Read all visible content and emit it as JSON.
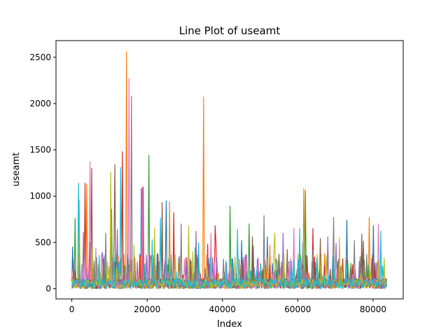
{
  "chart_data": {
    "type": "line",
    "title": "Line Plot of useamt",
    "xlabel": "Index",
    "ylabel": "useamt",
    "xlim": [
      -4200,
      88000
    ],
    "ylim": [
      -110,
      2680
    ],
    "x_ticks": [
      0,
      20000,
      40000,
      60000,
      80000
    ],
    "x_tick_labels": [
      "0",
      "20000",
      "40000",
      "60000",
      "80000"
    ],
    "y_ticks": [
      0,
      500,
      1000,
      1500,
      2000,
      2500
    ],
    "y_tick_labels": [
      "0",
      "500",
      "1000",
      "1500",
      "2000",
      "2500"
    ],
    "grid": false,
    "legend": "none",
    "x_max_index": 83700,
    "series": [
      {
        "color": "#1f77b4",
        "peaks": [
          [
            18500,
            1080
          ],
          [
            25000,
            950
          ],
          [
            45000,
            520
          ],
          [
            52000,
            560
          ],
          [
            73000,
            740
          ],
          [
            80000,
            680
          ]
        ]
      },
      {
        "color": "#ff7f0e",
        "peaks": [
          [
            14500,
            2560
          ],
          [
            35000,
            2070
          ],
          [
            61500,
            1080
          ],
          [
            4000,
            1130
          ],
          [
            26000,
            940
          ],
          [
            79000,
            770
          ]
        ]
      },
      {
        "color": "#2ca02c",
        "peaks": [
          [
            20500,
            1440
          ],
          [
            42000,
            890
          ],
          [
            62000,
            1060
          ],
          [
            800,
            760
          ],
          [
            10500,
            860
          ],
          [
            47000,
            700
          ]
        ]
      },
      {
        "color": "#d62728",
        "peaks": [
          [
            13500,
            1480
          ],
          [
            3500,
            1140
          ],
          [
            19000,
            1100
          ],
          [
            27000,
            820
          ],
          [
            38000,
            680
          ],
          [
            64000,
            650
          ]
        ]
      },
      {
        "color": "#9467bd",
        "peaks": [
          [
            3000,
            610
          ],
          [
            12000,
            640
          ],
          [
            33000,
            620
          ],
          [
            56000,
            600
          ],
          [
            68000,
            560
          ],
          [
            83000,
            300
          ]
        ]
      },
      {
        "color": "#8c564b",
        "peaks": [
          [
            5200,
            1300
          ],
          [
            11500,
            1340
          ],
          [
            24000,
            930
          ],
          [
            48000,
            560
          ],
          [
            66000,
            540
          ],
          [
            77000,
            590
          ]
        ]
      },
      {
        "color": "#e377c2",
        "peaks": [
          [
            4800,
            1370
          ],
          [
            15200,
            2270
          ],
          [
            18800,
            1090
          ],
          [
            37000,
            600
          ],
          [
            59000,
            650
          ],
          [
            81500,
            700
          ]
        ]
      },
      {
        "color": "#7f7f7f",
        "peaks": [
          [
            15800,
            2080
          ],
          [
            9000,
            600
          ],
          [
            29000,
            700
          ],
          [
            51000,
            790
          ],
          [
            69500,
            770
          ],
          [
            75000,
            520
          ]
        ]
      },
      {
        "color": "#bcbd22",
        "peaks": [
          [
            10300,
            1260
          ],
          [
            2000,
            960
          ],
          [
            22000,
            660
          ],
          [
            31000,
            680
          ],
          [
            54000,
            600
          ],
          [
            71000,
            550
          ]
        ]
      },
      {
        "color": "#17becf",
        "peaks": [
          [
            1800,
            1140
          ],
          [
            13000,
            1310
          ],
          [
            23500,
            760
          ],
          [
            44000,
            640
          ],
          [
            60500,
            650
          ],
          [
            82000,
            620
          ]
        ]
      }
    ]
  }
}
